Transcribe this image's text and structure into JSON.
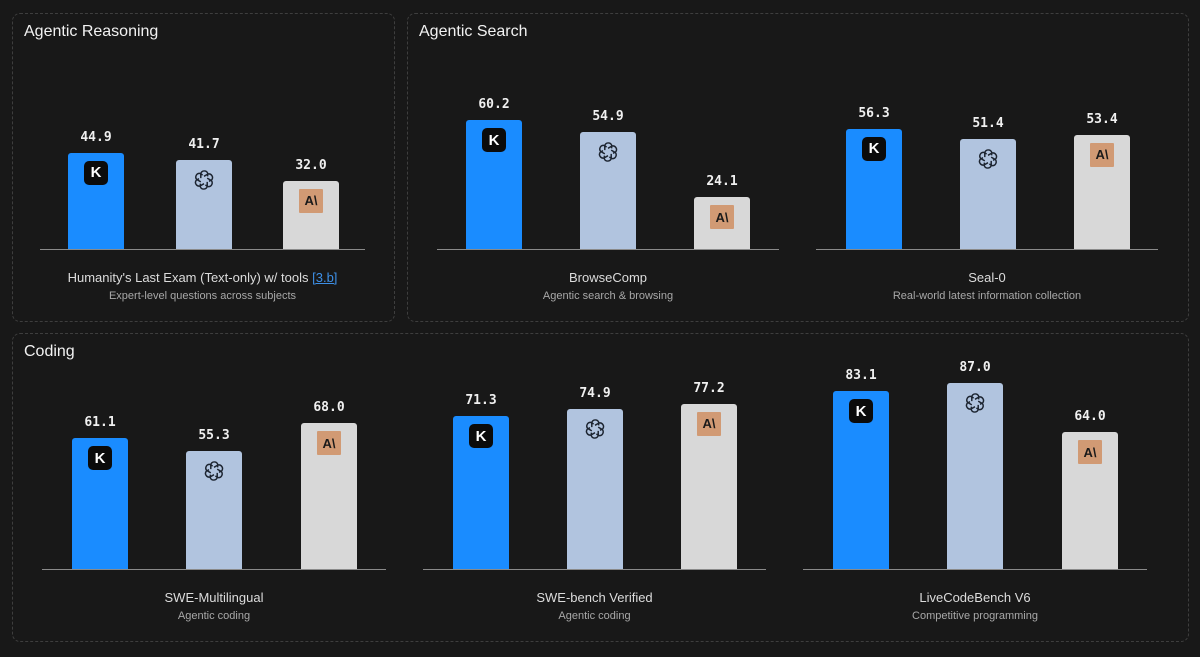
{
  "panels": [
    {
      "title": "Agentic Reasoning"
    },
    {
      "title": "Agentic Search"
    },
    {
      "title": "Coding"
    }
  ],
  "colors": {
    "kimi": "#1a8cff",
    "openai": "#b1c4df",
    "anthropic": "#d8d8d8",
    "background": "#181818"
  },
  "model_icons": [
    "kimi-logo-icon",
    "openai-logo-icon",
    "anthropic-logo-icon"
  ],
  "chart_data": [
    {
      "type": "bar",
      "panel": "Agentic Reasoning",
      "title": "Humanity's Last Exam (Text-only) w/ tools",
      "link": "[3.b]",
      "subtitle": "Expert-level questions across subjects",
      "values": [
        44.9,
        41.7,
        32.0
      ],
      "value_labels": [
        "44.9",
        "41.7",
        "32.0"
      ]
    },
    {
      "type": "bar",
      "panel": "Agentic Search",
      "title": "BrowseComp",
      "subtitle": "Agentic search & browsing",
      "values": [
        60.2,
        54.9,
        24.1
      ],
      "value_labels": [
        "60.2",
        "54.9",
        "24.1"
      ]
    },
    {
      "type": "bar",
      "panel": "Agentic Search",
      "title": "Seal-0",
      "subtitle": "Real-world latest information collection",
      "values": [
        56.3,
        51.4,
        53.4
      ],
      "value_labels": [
        "56.3",
        "51.4",
        "53.4"
      ]
    },
    {
      "type": "bar",
      "panel": "Coding",
      "title": "SWE-Multilingual",
      "subtitle": "Agentic coding",
      "values": [
        61.1,
        55.3,
        68.0
      ],
      "value_labels": [
        "61.1",
        "55.3",
        "68.0"
      ]
    },
    {
      "type": "bar",
      "panel": "Coding",
      "title": "SWE-bench Verified",
      "subtitle": "Agentic coding",
      "values": [
        71.3,
        74.9,
        77.2
      ],
      "value_labels": [
        "71.3",
        "74.9",
        "77.2"
      ]
    },
    {
      "type": "bar",
      "panel": "Coding",
      "title": "LiveCodeBench V6",
      "subtitle": "Competitive programming",
      "values": [
        83.1,
        87.0,
        64.0
      ],
      "value_labels": [
        "83.1",
        "87.0",
        "64.0"
      ]
    }
  ]
}
